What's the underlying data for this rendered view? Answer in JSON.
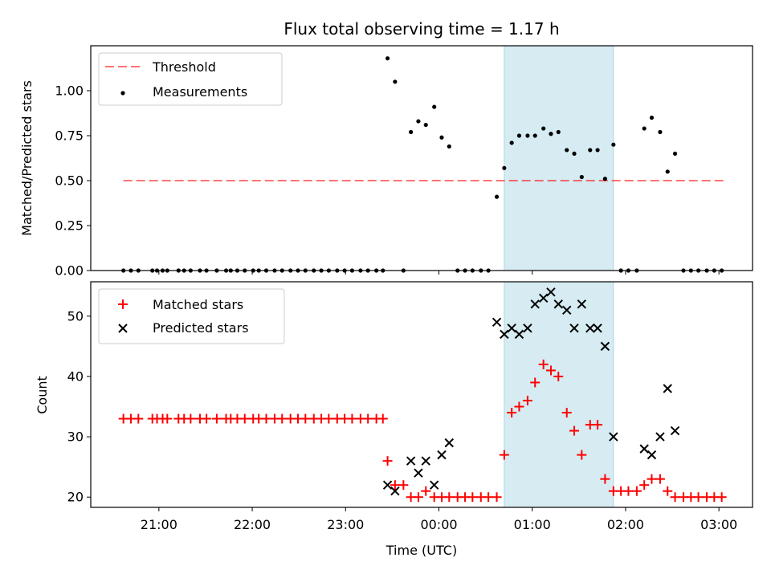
{
  "chart_data": [
    {
      "type": "scatter",
      "title": "Flux total observing time = 1.17 h",
      "xlabel": "",
      "ylabel": "Matched/Predicted stars",
      "ylim": [
        0.0,
        1.25
      ],
      "yticks": [
        0.0,
        0.25,
        0.5,
        0.75,
        1.0
      ],
      "ytick_labels": [
        "0.00",
        "0.25",
        "0.50",
        "0.75",
        "1.00"
      ],
      "x_unit": "hours since 20:00 UTC",
      "xlim": [
        0.27,
        7.36
      ],
      "shaded_interval": [
        4.7,
        5.87
      ],
      "shaded_color": "#add8e6",
      "legend_position": "upper-left",
      "threshold": {
        "name": "Threshold",
        "value": 0.5,
        "x_range": [
          0.62,
          7.05
        ],
        "color": "#ff0000",
        "style": "dashed"
      },
      "series": [
        {
          "name": "Measurements",
          "color": "#000000",
          "marker": "dot",
          "points": [
            [
              0.62,
              0
            ],
            [
              0.7,
              0
            ],
            [
              0.78,
              0
            ],
            [
              0.93,
              0
            ],
            [
              0.98,
              0
            ],
            [
              1.04,
              0
            ],
            [
              1.09,
              0
            ],
            [
              1.21,
              0
            ],
            [
              1.27,
              0
            ],
            [
              1.34,
              0
            ],
            [
              1.44,
              0
            ],
            [
              1.51,
              0
            ],
            [
              1.62,
              0
            ],
            [
              1.72,
              0
            ],
            [
              1.77,
              0
            ],
            [
              1.84,
              0
            ],
            [
              1.92,
              0
            ],
            [
              2.01,
              0
            ],
            [
              2.07,
              0
            ],
            [
              2.15,
              0
            ],
            [
              2.24,
              0
            ],
            [
              2.32,
              0
            ],
            [
              2.41,
              0
            ],
            [
              2.49,
              0
            ],
            [
              2.57,
              0
            ],
            [
              2.66,
              0
            ],
            [
              2.74,
              0
            ],
            [
              2.82,
              0
            ],
            [
              2.91,
              0
            ],
            [
              2.99,
              0
            ],
            [
              3.07,
              0
            ],
            [
              3.16,
              0
            ],
            [
              3.24,
              0
            ],
            [
              3.33,
              0
            ],
            [
              3.4,
              0
            ],
            [
              3.45,
              1.18
            ],
            [
              3.53,
              1.05
            ],
            [
              3.62,
              0
            ],
            [
              3.7,
              0.77
            ],
            [
              3.78,
              0.83
            ],
            [
              3.86,
              0.81
            ],
            [
              3.95,
              0.91
            ],
            [
              4.03,
              0.74
            ],
            [
              4.11,
              0.69
            ],
            [
              4.2,
              0
            ],
            [
              4.28,
              0
            ],
            [
              4.36,
              0
            ],
            [
              4.45,
              0
            ],
            [
              4.53,
              0
            ],
            [
              4.62,
              0.41
            ],
            [
              4.7,
              0.57
            ],
            [
              4.78,
              0.71
            ],
            [
              4.86,
              0.75
            ],
            [
              4.95,
              0.75
            ],
            [
              5.03,
              0.75
            ],
            [
              5.12,
              0.79
            ],
            [
              5.2,
              0.76
            ],
            [
              5.28,
              0.77
            ],
            [
              5.37,
              0.67
            ],
            [
              5.45,
              0.65
            ],
            [
              5.53,
              0.52
            ],
            [
              5.62,
              0.67
            ],
            [
              5.7,
              0.67
            ],
            [
              5.78,
              0.51
            ],
            [
              5.87,
              0.7
            ],
            [
              5.95,
              0
            ],
            [
              6.03,
              0
            ],
            [
              6.12,
              0
            ],
            [
              6.2,
              0.79
            ],
            [
              6.28,
              0.85
            ],
            [
              6.37,
              0.77
            ],
            [
              6.45,
              0.55
            ],
            [
              6.53,
              0.65
            ],
            [
              6.62,
              0
            ],
            [
              6.7,
              0
            ],
            [
              6.78,
              0
            ],
            [
              6.87,
              0
            ],
            [
              6.95,
              0
            ],
            [
              7.03,
              0
            ]
          ]
        }
      ]
    },
    {
      "type": "scatter",
      "title": "",
      "xlabel": "Time (UTC)",
      "ylabel": "Count",
      "ylim": [
        18.3,
        55.7
      ],
      "yticks": [
        20,
        30,
        40,
        50
      ],
      "ytick_labels": [
        "20",
        "30",
        "40",
        "50"
      ],
      "x_unit": "hours since 20:00 UTC",
      "xlim": [
        0.27,
        7.36
      ],
      "xticks": [
        1,
        2,
        3,
        4,
        5,
        6,
        7
      ],
      "xtick_labels": [
        "21:00",
        "22:00",
        "23:00",
        "00:00",
        "01:00",
        "02:00",
        "03:00"
      ],
      "shaded_interval": [
        4.7,
        5.87
      ],
      "shaded_color": "#add8e6",
      "legend_position": "upper-left",
      "series": [
        {
          "name": "Matched stars",
          "color": "#ff0000",
          "marker": "plus",
          "points": [
            [
              0.62,
              33
            ],
            [
              0.7,
              33
            ],
            [
              0.78,
              33
            ],
            [
              0.93,
              33
            ],
            [
              0.98,
              33
            ],
            [
              1.04,
              33
            ],
            [
              1.09,
              33
            ],
            [
              1.21,
              33
            ],
            [
              1.27,
              33
            ],
            [
              1.34,
              33
            ],
            [
              1.44,
              33
            ],
            [
              1.51,
              33
            ],
            [
              1.62,
              33
            ],
            [
              1.72,
              33
            ],
            [
              1.77,
              33
            ],
            [
              1.84,
              33
            ],
            [
              1.92,
              33
            ],
            [
              2.01,
              33
            ],
            [
              2.07,
              33
            ],
            [
              2.15,
              33
            ],
            [
              2.24,
              33
            ],
            [
              2.32,
              33
            ],
            [
              2.41,
              33
            ],
            [
              2.49,
              33
            ],
            [
              2.57,
              33
            ],
            [
              2.66,
              33
            ],
            [
              2.74,
              33
            ],
            [
              2.82,
              33
            ],
            [
              2.91,
              33
            ],
            [
              2.99,
              33
            ],
            [
              3.07,
              33
            ],
            [
              3.16,
              33
            ],
            [
              3.24,
              33
            ],
            [
              3.33,
              33
            ],
            [
              3.4,
              33
            ],
            [
              3.45,
              26
            ],
            [
              3.53,
              22
            ],
            [
              3.62,
              22
            ],
            [
              3.7,
              20
            ],
            [
              3.78,
              20
            ],
            [
              3.86,
              21
            ],
            [
              3.95,
              20
            ],
            [
              4.03,
              20
            ],
            [
              4.11,
              20
            ],
            [
              4.2,
              20
            ],
            [
              4.28,
              20
            ],
            [
              4.36,
              20
            ],
            [
              4.45,
              20
            ],
            [
              4.53,
              20
            ],
            [
              4.62,
              20
            ],
            [
              4.7,
              27
            ],
            [
              4.78,
              34
            ],
            [
              4.86,
              35
            ],
            [
              4.95,
              36
            ],
            [
              5.03,
              39
            ],
            [
              5.12,
              42
            ],
            [
              5.2,
              41
            ],
            [
              5.28,
              40
            ],
            [
              5.37,
              34
            ],
            [
              5.45,
              31
            ],
            [
              5.53,
              27
            ],
            [
              5.62,
              32
            ],
            [
              5.7,
              32
            ],
            [
              5.78,
              23
            ],
            [
              5.87,
              21
            ],
            [
              5.95,
              21
            ],
            [
              6.03,
              21
            ],
            [
              6.12,
              21
            ],
            [
              6.2,
              22
            ],
            [
              6.28,
              23
            ],
            [
              6.37,
              23
            ],
            [
              6.45,
              21
            ],
            [
              6.53,
              20
            ],
            [
              6.62,
              20
            ],
            [
              6.7,
              20
            ],
            [
              6.78,
              20
            ],
            [
              6.87,
              20
            ],
            [
              6.95,
              20
            ],
            [
              7.03,
              20
            ]
          ]
        },
        {
          "name": "Predicted stars",
          "color": "#000000",
          "marker": "x",
          "points": [
            [
              3.45,
              22
            ],
            [
              3.53,
              21
            ],
            [
              3.7,
              26
            ],
            [
              3.78,
              24
            ],
            [
              3.86,
              26
            ],
            [
              3.95,
              22
            ],
            [
              4.03,
              27
            ],
            [
              4.11,
              29
            ],
            [
              4.62,
              49
            ],
            [
              4.7,
              47
            ],
            [
              4.78,
              48
            ],
            [
              4.86,
              47
            ],
            [
              4.95,
              48
            ],
            [
              5.03,
              52
            ],
            [
              5.12,
              53
            ],
            [
              5.2,
              54
            ],
            [
              5.28,
              52
            ],
            [
              5.37,
              51
            ],
            [
              5.45,
              48
            ],
            [
              5.53,
              52
            ],
            [
              5.62,
              48
            ],
            [
              5.7,
              48
            ],
            [
              5.78,
              45
            ],
            [
              5.87,
              30
            ],
            [
              6.2,
              28
            ],
            [
              6.28,
              27
            ],
            [
              6.37,
              30
            ],
            [
              6.45,
              38
            ],
            [
              6.53,
              31
            ]
          ]
        }
      ]
    }
  ]
}
